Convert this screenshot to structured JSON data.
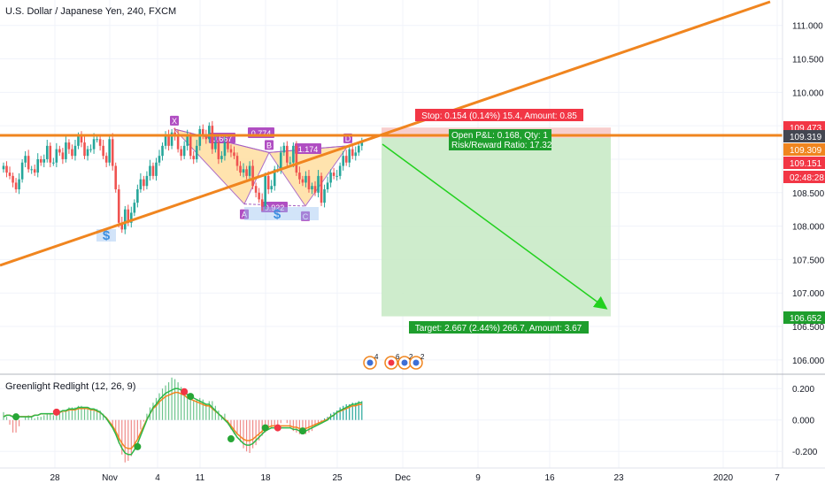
{
  "header": {
    "symbol_title": "U.S. Dollar / Japanese Yen, 240, FXCM"
  },
  "indicator": {
    "label": "Greenlight Redlight (12, 26, 9)"
  },
  "colors": {
    "candle_up": "#26a69a",
    "candle_down": "#ef5350",
    "trend_orange": "#f0851f",
    "pattern_fill": "#ffe0a6",
    "pattern_edge": "#a55fc1",
    "pattern_label": "#b04ec2",
    "stop_zone": "#f7c5c4",
    "target_zone": "#c9eac6",
    "arrow": "#22d11e",
    "stop_box": "#f23645",
    "pnl_box": "#1e9e2d",
    "macd_line": "#2db84a",
    "signal_line": "#f0851f",
    "dot_buy": "#27a636",
    "dot_sell": "#f23645"
  },
  "chart_data": {
    "type": "candlestick",
    "title": "U.S. Dollar / Japanese Yen, 240, FXCM",
    "price_ylim": [
      105.8,
      111.3
    ],
    "price_ticks": [
      "111.000",
      "110.500",
      "110.000",
      "109.500",
      "109.000",
      "108.500",
      "108.000",
      "107.500",
      "107.000",
      "106.500",
      "106.000"
    ],
    "x_ticks": [
      "28",
      "Nov",
      "4",
      "11",
      "18",
      "25",
      "Dec",
      "9",
      "16",
      "23",
      "2020",
      "7"
    ],
    "closes": [
      108.9,
      108.8,
      108.75,
      108.65,
      108.55,
      108.7,
      108.95,
      109.05,
      108.85,
      108.85,
      108.8,
      109.0,
      108.95,
      109.0,
      109.2,
      108.95,
      108.95,
      109.15,
      109.1,
      109.0,
      109.25,
      109.15,
      109.05,
      109.2,
      109.35,
      109.25,
      109.05,
      109.15,
      109.15,
      109.3,
      109.3,
      109.2,
      109.05,
      108.95,
      109.3,
      108.9,
      108.55,
      108.05,
      107.95,
      108.25,
      108.05,
      108.2,
      108.35,
      108.55,
      108.7,
      108.6,
      108.75,
      108.9,
      108.75,
      108.95,
      109.05,
      109.2,
      109.35,
      109.2,
      109.4,
      109.35,
      109.15,
      109.05,
      109.2,
      109.35,
      109.05,
      109.0,
      109.2,
      109.45,
      109.35,
      109.3,
      109.5,
      109.15,
      109.25,
      109.0,
      109.05,
      109.25,
      109.15,
      109.1,
      109.05,
      108.9,
      108.8,
      108.85,
      108.75,
      108.9,
      108.6,
      108.5,
      108.4,
      108.3,
      108.75,
      108.55,
      108.6,
      108.85,
      108.85,
      109.1,
      109.2,
      108.95,
      108.95,
      109.2,
      108.8,
      108.7,
      108.65,
      108.75,
      108.55,
      108.6,
      108.5,
      108.75,
      108.35,
      108.55,
      108.65,
      108.8,
      108.75,
      108.75,
      108.9,
      109.05,
      108.95,
      109.15,
      109.05,
      109.1,
      109.2,
      109.25
    ],
    "price_labels": {
      "p1": "109.473",
      "p2": "109.319",
      "p3": "109.309",
      "p4": "109.151",
      "countdown": "02:48:28",
      "p5": "106.652"
    },
    "position_levels": {
      "stop": 109.473,
      "entry": 109.319,
      "target": 106.652
    },
    "trade_labels": {
      "stop": "Stop: 0.154 (0.14%) 15.4, Amount: 0.85",
      "pnl": "Open P&L: 0.168, Qty: 1",
      "rr": "Risk/Reward Ratio: 17.32",
      "target": "Target: 2.667 (2.44%) 266.7, Amount: 3.67"
    },
    "harmonic_pattern": {
      "points": {
        "X": 109.45,
        "A": 108.33,
        "B": 109.1,
        "C": 108.3,
        "D": 109.2
      },
      "labels": [
        "X",
        "A",
        "B",
        "C",
        "D"
      ],
      "ratios": [
        "0.667",
        "0.774",
        "1.174",
        "0.922"
      ]
    },
    "event_badges": [
      "4",
      "6",
      "2",
      "2"
    ],
    "indicator_ylim": [
      -0.3,
      0.28
    ],
    "indicator_ticks": [
      "0.200",
      "0.000",
      "-0.200"
    ],
    "indicator_hist": [
      0.05,
      0.02,
      -0.03,
      -0.08,
      -0.08,
      -0.04,
      0.0,
      0.02,
      0.03,
      0.02,
      0.01,
      0.02,
      0.02,
      0.03,
      0.04,
      0.04,
      0.03,
      0.04,
      0.05,
      0.05,
      0.06,
      0.08,
      0.08,
      0.08,
      0.09,
      0.09,
      0.08,
      0.08,
      0.07,
      0.07,
      0.07,
      0.06,
      0.04,
      0.01,
      0.0,
      -0.04,
      -0.08,
      -0.15,
      -0.22,
      -0.27,
      -0.26,
      -0.23,
      -0.17,
      -0.12,
      -0.06,
      -0.01,
      0.04,
      0.08,
      0.11,
      0.14,
      0.17,
      0.2,
      0.22,
      0.24,
      0.27,
      0.26,
      0.24,
      0.21,
      0.17,
      0.15,
      0.14,
      0.12,
      0.13,
      0.14,
      0.13,
      0.1,
      0.12,
      0.12,
      0.09,
      0.06,
      0.03,
      0.04,
      -0.01,
      -0.06,
      -0.09,
      -0.09,
      -0.14,
      -0.18,
      -0.2,
      -0.21,
      -0.18,
      -0.16,
      -0.13,
      -0.1,
      -0.08,
      -0.06,
      -0.05,
      -0.04,
      -0.03,
      -0.02,
      0.0,
      -0.02,
      -0.05,
      -0.07,
      -0.08,
      -0.09,
      -0.09,
      -0.09,
      -0.08,
      -0.07,
      -0.04,
      -0.03,
      -0.01,
      0.01,
      0.02,
      0.04,
      0.05,
      0.06,
      0.08,
      0.09,
      0.1,
      0.1,
      0.11,
      0.11,
      0.12,
      0.12
    ],
    "indicator_line": [
      0.02,
      0.03,
      0.03,
      0.02,
      0.02,
      0.02,
      0.02,
      0.02,
      0.02,
      0.02,
      0.03,
      0.03,
      0.04,
      0.04,
      0.04,
      0.04,
      0.04,
      0.05,
      0.05,
      0.06,
      0.06,
      0.07,
      0.07,
      0.07,
      0.08,
      0.08,
      0.08,
      0.08,
      0.07,
      0.07,
      0.06,
      0.05,
      0.03,
      0.01,
      -0.02,
      -0.05,
      -0.09,
      -0.14,
      -0.18,
      -0.21,
      -0.22,
      -0.22,
      -0.19,
      -0.15,
      -0.1,
      -0.05,
      0.0,
      0.04,
      0.08,
      0.1,
      0.13,
      0.15,
      0.17,
      0.18,
      0.19,
      0.2,
      0.2,
      0.19,
      0.18,
      0.16,
      0.15,
      0.14,
      0.13,
      0.12,
      0.11,
      0.1,
      0.1,
      0.08,
      0.06,
      0.04,
      0.02,
      0.0,
      -0.02,
      -0.05,
      -0.08,
      -0.11,
      -0.13,
      -0.15,
      -0.16,
      -0.16,
      -0.15,
      -0.13,
      -0.11,
      -0.09,
      -0.07,
      -0.06,
      -0.05,
      -0.05,
      -0.05,
      -0.05,
      -0.05,
      -0.05,
      -0.05,
      -0.06,
      -0.06,
      -0.07,
      -0.07,
      -0.07,
      -0.06,
      -0.05,
      -0.04,
      -0.03,
      -0.02,
      -0.01,
      0.0,
      0.02,
      0.03,
      0.05,
      0.06,
      0.07,
      0.08,
      0.09,
      0.1,
      0.1,
      0.11,
      0.11
    ],
    "indicator_signal_dots": [
      {
        "bar": 4,
        "value": 0.02,
        "side": "buy"
      },
      {
        "bar": 17,
        "value": 0.05,
        "side": "sell"
      },
      {
        "bar": 43,
        "value": -0.17,
        "side": "buy"
      },
      {
        "bar": 58,
        "value": 0.18,
        "side": "sell"
      },
      {
        "bar": 60,
        "value": 0.15,
        "side": "buy"
      },
      {
        "bar": 73,
        "value": -0.12,
        "side": "buy"
      },
      {
        "bar": 84,
        "value": -0.05,
        "side": "buy"
      },
      {
        "bar": 88,
        "value": -0.05,
        "side": "sell"
      },
      {
        "bar": 96,
        "value": -0.07,
        "side": "buy"
      }
    ]
  }
}
